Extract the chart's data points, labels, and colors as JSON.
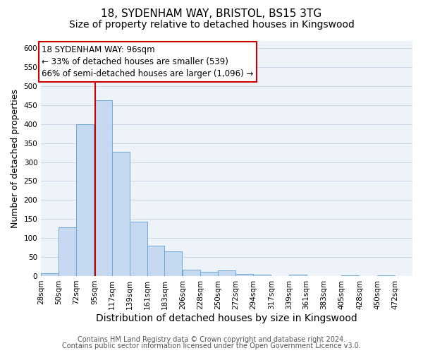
{
  "title": "18, SYDENHAM WAY, BRISTOL, BS15 3TG",
  "subtitle": "Size of property relative to detached houses in Kingswood",
  "xlabel": "Distribution of detached houses by size in Kingswood",
  "ylabel": "Number of detached properties",
  "bar_left_edges": [
    28,
    50,
    72,
    95,
    117,
    139,
    161,
    183,
    206,
    228,
    250,
    272,
    294,
    317,
    339,
    361,
    383,
    405,
    428,
    450
  ],
  "bar_heights": [
    8,
    128,
    400,
    462,
    328,
    143,
    80,
    65,
    17,
    11,
    14,
    6,
    3,
    0,
    3,
    0,
    0,
    1,
    0,
    2
  ],
  "bin_width": 22,
  "tick_labels": [
    "28sqm",
    "50sqm",
    "72sqm",
    "95sqm",
    "117sqm",
    "139sqm",
    "161sqm",
    "183sqm",
    "206sqm",
    "228sqm",
    "250sqm",
    "272sqm",
    "294sqm",
    "317sqm",
    "339sqm",
    "361sqm",
    "383sqm",
    "405sqm",
    "428sqm",
    "450sqm",
    "472sqm"
  ],
  "tick_positions": [
    28,
    50,
    72,
    95,
    117,
    139,
    161,
    183,
    206,
    228,
    250,
    272,
    294,
    317,
    339,
    361,
    383,
    405,
    428,
    450,
    472
  ],
  "bar_color": "#c5d9f0",
  "bar_edge_color": "#6ea8d8",
  "vline_x": 96,
  "vline_color": "#cc0000",
  "annotation_line1": "18 SYDENHAM WAY: 96sqm",
  "annotation_line2": "← 33% of detached houses are smaller (539)",
  "annotation_line3": "66% of semi-detached houses are larger (1,096) →",
  "annotation_box_color": "#cc0000",
  "annotation_box_facecolor": "white",
  "ylim": [
    0,
    620
  ],
  "yticks": [
    0,
    50,
    100,
    150,
    200,
    250,
    300,
    350,
    400,
    450,
    500,
    550,
    600
  ],
  "grid_color": "#c8d4e8",
  "bg_color": "#eef2f9",
  "footer_line1": "Contains HM Land Registry data © Crown copyright and database right 2024.",
  "footer_line2": "Contains public sector information licensed under the Open Government Licence v3.0.",
  "title_fontsize": 11,
  "subtitle_fontsize": 10,
  "xlabel_fontsize": 10,
  "ylabel_fontsize": 9,
  "tick_fontsize": 7.5,
  "annotation_fontsize": 8.5,
  "footer_fontsize": 7
}
